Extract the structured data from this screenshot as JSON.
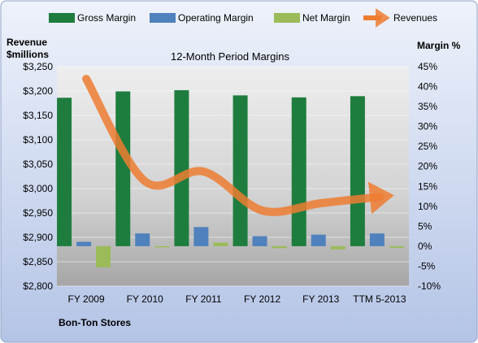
{
  "chart_data": {
    "type": "bar",
    "title": "12-Month Period Margins",
    "company": "Bon-Ton Stores",
    "left_axis_title": [
      "Revenue",
      "$millions"
    ],
    "right_axis_title": "Margin %",
    "legend_position": "top",
    "grid": true,
    "categories": [
      "FY 2009",
      "FY 2010",
      "FY 2011",
      "FY 2012",
      "FY 2013",
      "TTM 5-2013"
    ],
    "left_axis": {
      "ylim": [
        2800,
        3250
      ],
      "step": 50,
      "ticks": [
        "$2,800",
        "$2,850",
        "$2,900",
        "$2,950",
        "$3,000",
        "$3,050",
        "$3,100",
        "$3,150",
        "$3,200",
        "$3,250"
      ]
    },
    "right_axis": {
      "ylim": [
        -10,
        45
      ],
      "step": 5,
      "ticks": [
        "-10%",
        "-5%",
        "0%",
        "5%",
        "10%",
        "15%",
        "20%",
        "25%",
        "30%",
        "35%",
        "40%",
        "45%"
      ]
    },
    "series": [
      {
        "name": "Gross Margin",
        "kind": "bar",
        "axis": "right",
        "color": "#1e7d3e",
        "values": [
          37.2,
          38.8,
          39.1,
          37.8,
          37.3,
          37.6
        ]
      },
      {
        "name": "Operating Margin",
        "kind": "bar",
        "axis": "right",
        "color": "#4f81bd",
        "values": [
          1.1,
          3.2,
          4.8,
          2.5,
          2.9,
          3.2
        ]
      },
      {
        "name": "Net Margin",
        "kind": "bar",
        "axis": "right",
        "color": "#9bbb59",
        "values": [
          -5.3,
          -0.3,
          0.9,
          -0.5,
          -0.8,
          -0.4
        ]
      },
      {
        "name": "Revenues",
        "kind": "line",
        "axis": "left",
        "color": "#ed7d31",
        "values": [
          3225,
          3015,
          3035,
          2955,
          2970,
          2983
        ]
      }
    ]
  }
}
